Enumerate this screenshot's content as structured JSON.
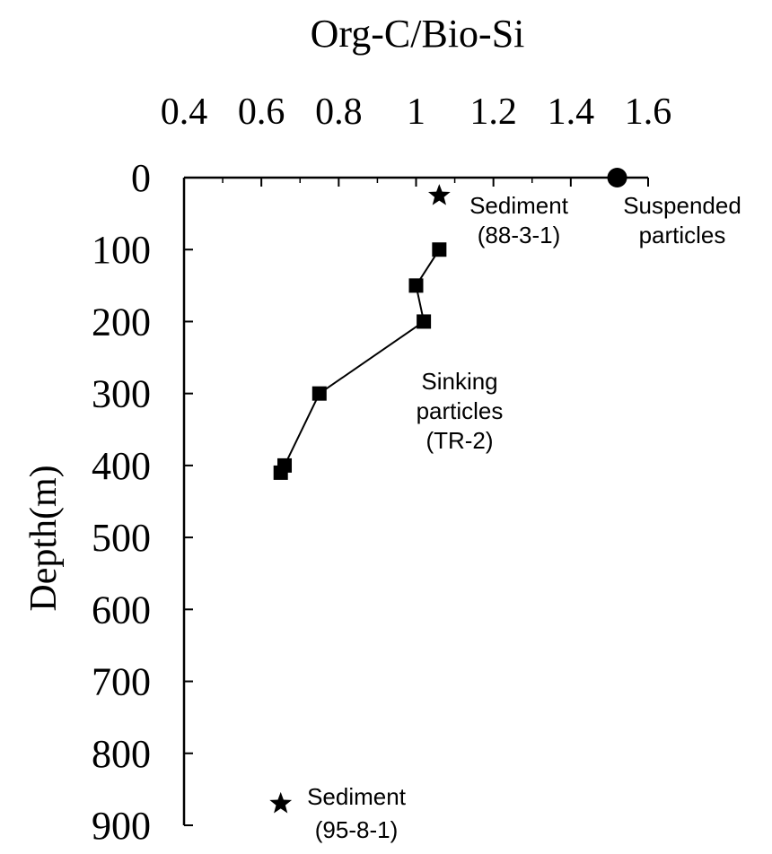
{
  "chart_data": {
    "type": "scatter",
    "title": "Org-C/Bio-Si",
    "xlabel": "Org-C/Bio-Si",
    "ylabel": "Depth(m)",
    "xlim": [
      0.4,
      1.6
    ],
    "ylim": [
      0,
      900
    ],
    "y_inverted": true,
    "x_axis_position": "top",
    "x_ticks": [
      "0.4",
      "0.6",
      "0.8",
      "1",
      "1.2",
      "1.4",
      "1.6"
    ],
    "y_ticks": [
      "0",
      "100",
      "200",
      "300",
      "400",
      "500",
      "600",
      "700",
      "800",
      "900"
    ],
    "grid": false,
    "series": [
      {
        "name": "Sinking particles (TR-2)",
        "marker": "square",
        "connected": true,
        "points": [
          {
            "x": 1.06,
            "y": 100
          },
          {
            "x": 1.0,
            "y": 150
          },
          {
            "x": 1.02,
            "y": 200
          },
          {
            "x": 0.75,
            "y": 300
          },
          {
            "x": 0.66,
            "y": 400
          },
          {
            "x": 0.65,
            "y": 410
          }
        ]
      },
      {
        "name": "Suspended particles",
        "marker": "circle",
        "connected": false,
        "points": [
          {
            "x": 1.52,
            "y": 0
          }
        ]
      },
      {
        "name": "Sediment (88-3-1)",
        "marker": "star",
        "connected": false,
        "points": [
          {
            "x": 1.06,
            "y": 25
          }
        ]
      },
      {
        "name": "Sediment (95-8-1)",
        "marker": "star",
        "connected": false,
        "points": [
          {
            "x": 0.65,
            "y": 870
          }
        ]
      }
    ],
    "annotations": [
      {
        "lines": [
          "Sediment",
          "(88-3-1)"
        ]
      },
      {
        "lines": [
          "Suspended",
          "particles"
        ]
      },
      {
        "lines": [
          "Sinking",
          "particles",
          "(TR-2)"
        ]
      },
      {
        "lines": [
          "Sediment",
          "(95-8-1)"
        ]
      }
    ]
  }
}
